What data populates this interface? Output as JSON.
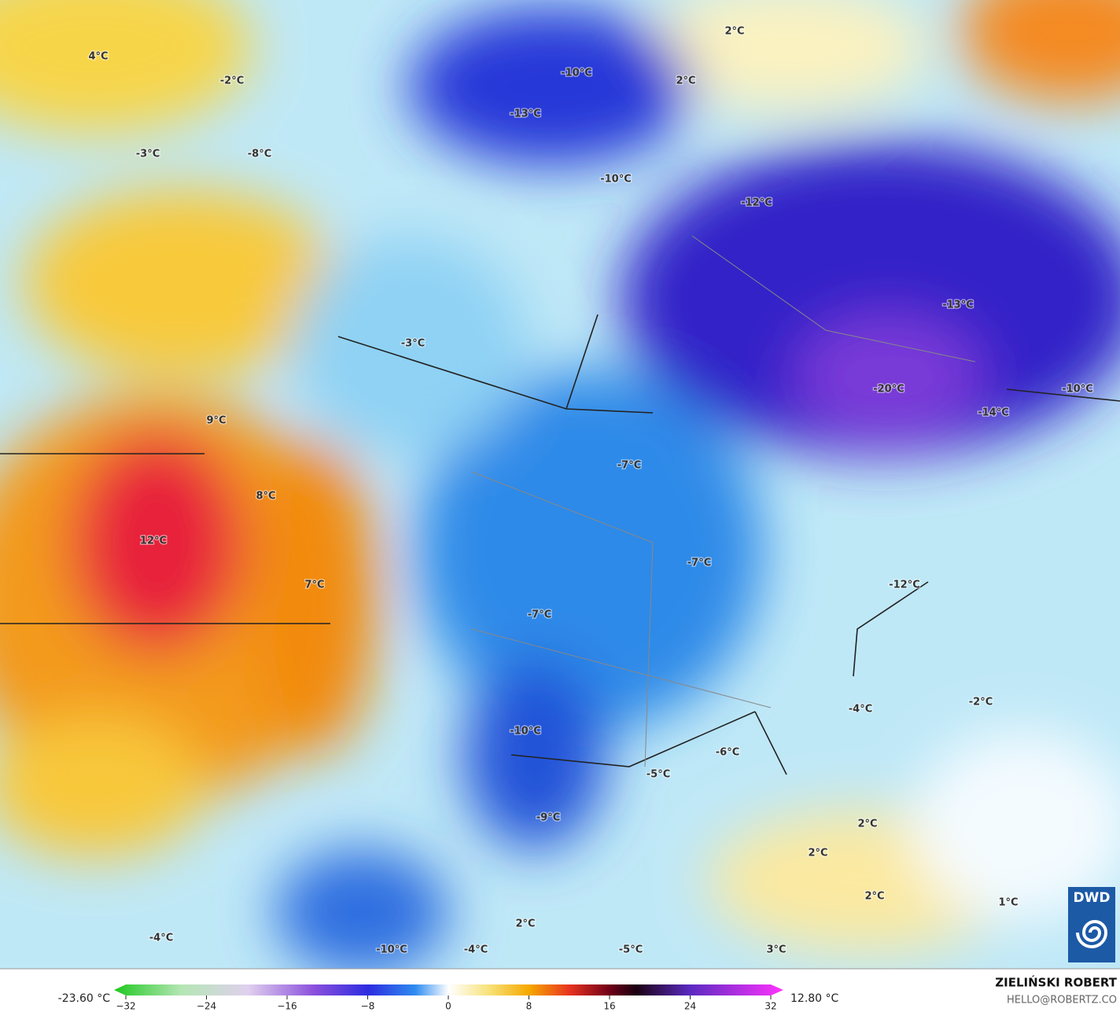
{
  "map": {
    "labels": [
      "4°C",
      "-2°C",
      "-3°C",
      "-8°C",
      "-10°C",
      "-13°C",
      "2°C",
      "2°C",
      "-10°C",
      "-12°C",
      "-3°C",
      "-13°C",
      "-20°C",
      "-10°C",
      "-14°C",
      "9°C",
      "8°C",
      "-7°C",
      "12°C",
      "-7°C",
      "7°C",
      "-7°C",
      "-12°C",
      "-2°C",
      "-4°C",
      "-10°C",
      "-6°C",
      "-5°C",
      "-9°C",
      "2°C",
      "2°C",
      "2°C",
      "1°C",
      "2°C",
      "-4°C",
      "-10°C",
      "-4°C",
      "-5°C",
      "3°C"
    ],
    "logo": "DWD"
  },
  "colorbar": {
    "min_label": "-23.60 °C",
    "max_label": "12.80 °C",
    "range": [
      -32,
      32
    ],
    "ticks": [
      {
        "value": -32,
        "label": "−32"
      },
      {
        "value": -24,
        "label": "−24"
      },
      {
        "value": -16,
        "label": "−16"
      },
      {
        "value": -8,
        "label": "−8"
      },
      0,
      8,
      16,
      24,
      32
    ]
  },
  "credit": {
    "author": "ZIELIŃSKI ROBERT",
    "contact": "HELLO@ROBERTZ.CO"
  }
}
